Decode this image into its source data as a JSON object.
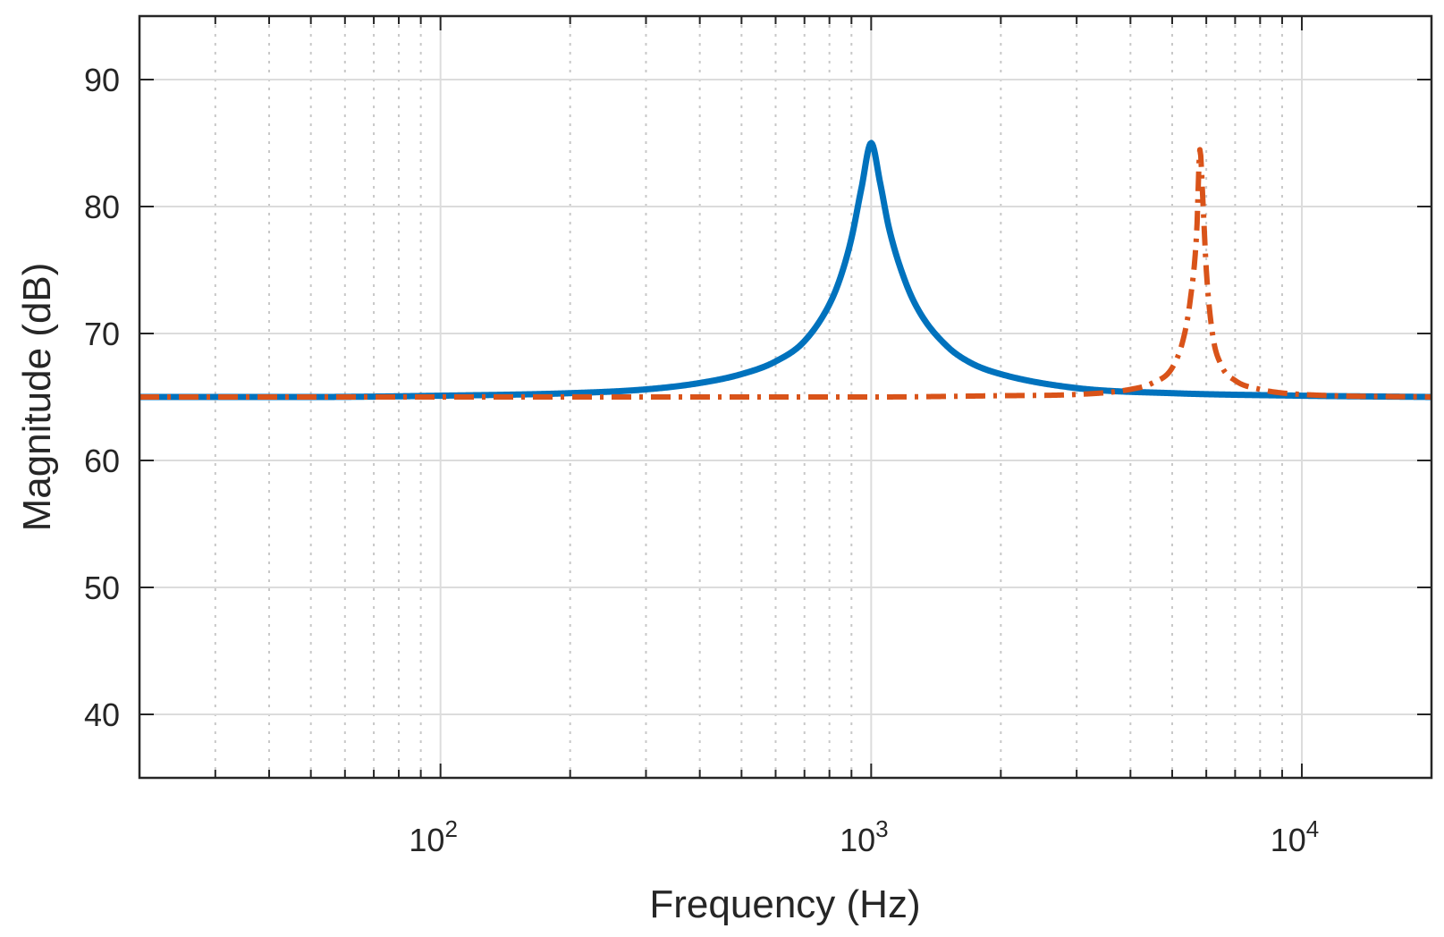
{
  "chart_data": {
    "type": "line",
    "title": "",
    "xlabel": "Frequency (Hz)",
    "ylabel": "Magnitude (dB)",
    "xscale": "log",
    "xlim": [
      20,
      20000
    ],
    "ylim": [
      35,
      95
    ],
    "grid": true,
    "legend": "none",
    "x_ticks": [
      {
        "value": 100,
        "base": "10",
        "exp": "2"
      },
      {
        "value": 1000,
        "base": "10",
        "exp": "3"
      },
      {
        "value": 10000,
        "base": "10",
        "exp": "4"
      }
    ],
    "y_ticks": [
      {
        "value": 40,
        "label": "40"
      },
      {
        "value": 50,
        "label": "50"
      },
      {
        "value": 60,
        "label": "60"
      },
      {
        "value": 70,
        "label": "70"
      },
      {
        "value": 80,
        "label": "80"
      },
      {
        "value": 90,
        "label": "90"
      }
    ],
    "series": [
      {
        "style": "solid",
        "color": "#0072bd",
        "x": [
          20,
          50,
          100,
          200,
          300,
          400,
          500,
          600,
          700,
          800,
          850,
          900,
          950,
          1000,
          1050,
          1100,
          1200,
          1300,
          1500,
          1700,
          2000,
          3000,
          5000,
          10000,
          20000
        ],
        "y": [
          65.0,
          65.0,
          65.1,
          65.3,
          65.6,
          66.1,
          66.8,
          67.8,
          69.4,
          72.3,
          74.5,
          77.5,
          81.5,
          85.0,
          81.8,
          78.3,
          74.1,
          71.6,
          69.0,
          67.7,
          66.8,
          65.7,
          65.3,
          65.1,
          65.0
        ]
      },
      {
        "style": "dashdot",
        "color": "#d95319",
        "x": [
          20,
          100,
          1000,
          2000,
          3000,
          4000,
          4500,
          5000,
          5300,
          5500,
          5700,
          5800,
          5900,
          6000,
          6200,
          6500,
          7000,
          8000,
          10000,
          20000
        ],
        "y": [
          65.0,
          65.0,
          65.0,
          65.1,
          65.2,
          65.6,
          66.1,
          67.3,
          69.5,
          72.5,
          78.0,
          84.5,
          80.0,
          75.0,
          70.0,
          67.5,
          66.3,
          65.6,
          65.2,
          65.0
        ]
      }
    ]
  }
}
